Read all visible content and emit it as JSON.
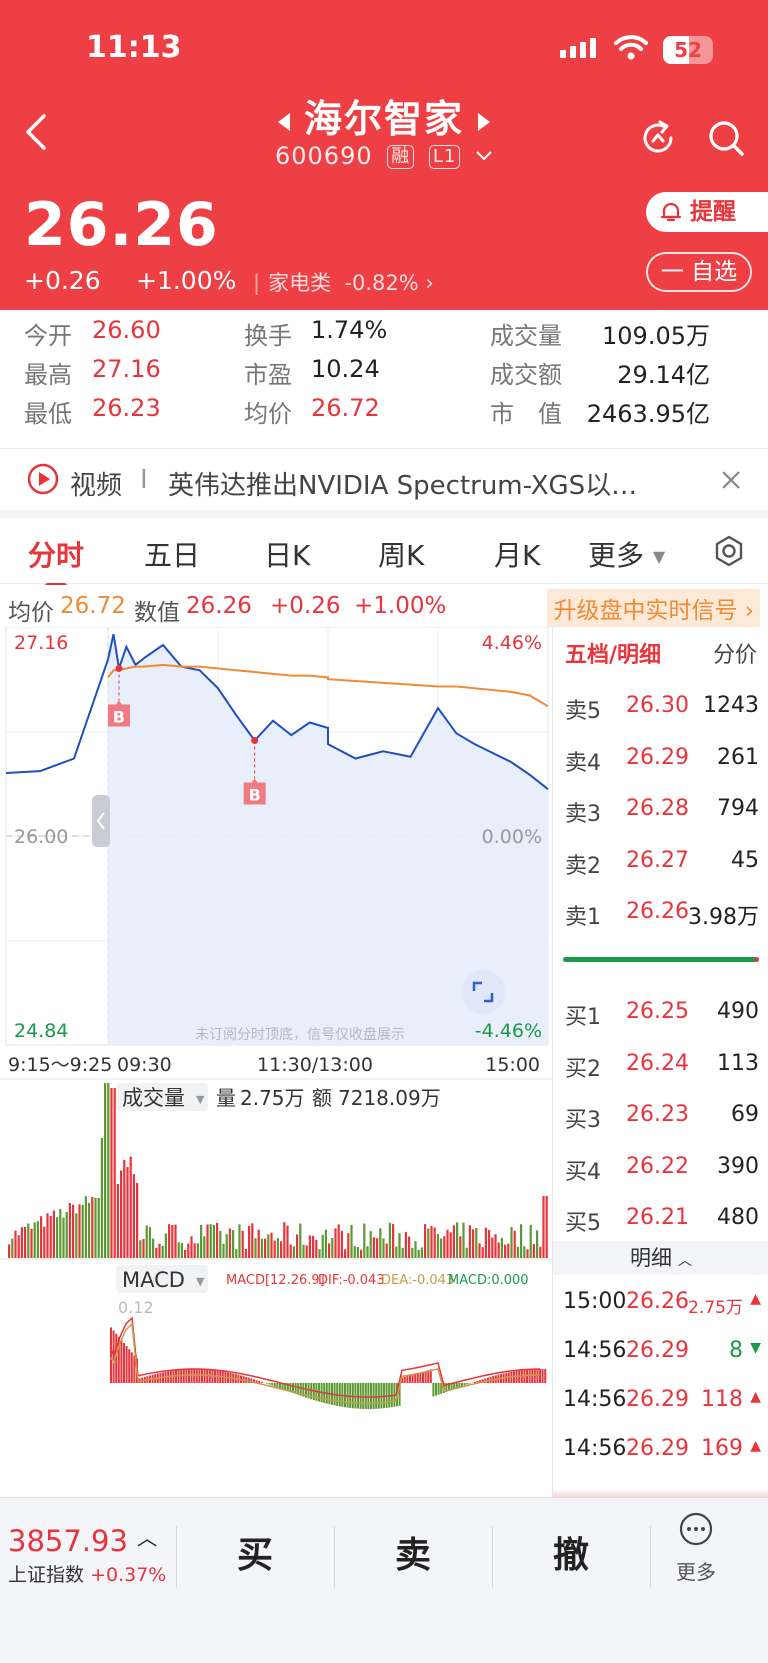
{
  "status_bar": {
    "time": "11:13",
    "battery": "52",
    "battery_level": 0.52
  },
  "header": {
    "stock_name": "海尔智家",
    "stock_code": "600690",
    "tag_margin": "融",
    "tag_level": "L1",
    "price": "26.26",
    "change": "+0.26",
    "change_pct": "+1.00%",
    "sector": "家电类",
    "sector_change": "-0.82%",
    "remind_label": "提醒",
    "watchlist_label": "一 自选"
  },
  "stats": [
    {
      "label": "今开",
      "value": "26.60",
      "color": "red"
    },
    {
      "label": "最高",
      "value": "27.16",
      "color": "red"
    },
    {
      "label": "最低",
      "value": "26.23",
      "color": "red"
    },
    {
      "label": "换手",
      "value": "1.74%",
      "color": "dark"
    },
    {
      "label": "市盈",
      "value": "10.24",
      "color": "dark"
    },
    {
      "label": "均价",
      "value": "26.72",
      "color": "red"
    },
    {
      "label": "成交量",
      "value": "109.05万",
      "color": "dark"
    },
    {
      "label": "成交额",
      "value": "29.14亿",
      "color": "dark"
    },
    {
      "label": "市　值",
      "value": "2463.95亿",
      "color": "dark"
    }
  ],
  "news": {
    "label": "视频",
    "text": "英伟达推出NVIDIA  Spectrum-XGS以…"
  },
  "tabs": [
    "分时",
    "五日",
    "日K",
    "周K",
    "月K",
    "更多"
  ],
  "info_line": {
    "avg_label": "均价",
    "avg": "26.72",
    "val_label": "数值",
    "val": "26.26",
    "chg": "+0.26",
    "pct": "+1.00%",
    "upgrade": "升级盘中实时信号"
  },
  "chart_labels": {
    "top_price": "27.16",
    "top_pct": "4.46%",
    "mid_price": "26.00",
    "mid_pct": "0.00%",
    "bot_price": "24.84",
    "bot_pct": "-4.46%",
    "note": "未订阅分时顶底，信号仅收盘展示",
    "signal_mark": "B"
  },
  "time_axis": [
    "9:15～9:25",
    "09:30",
    "11:30/13:00",
    "15:00"
  ],
  "volume_panel": {
    "label": "成交量",
    "vol_label": "量",
    "vol": "2.75万",
    "amt_label": "额",
    "amt": "7218.09万"
  },
  "macd_panel": {
    "label": "MACD",
    "params": "MACD[12.26.9]",
    "dif": "DIF:-0.043",
    "dea": "DEA:-0.043",
    "macd": "MACD:0.000",
    "axis": "0.12"
  },
  "chart_data": {
    "type": "line",
    "ylim": [
      24.84,
      27.16
    ],
    "prev_close": 26.0,
    "time": [
      "09:15",
      "09:20",
      "09:25",
      "09:30",
      "09:33",
      "09:36",
      "09:40",
      "09:45",
      "09:50",
      "10:00",
      "10:10",
      "10:20",
      "10:30",
      "10:40",
      "10:50",
      "11:00",
      "11:10",
      "11:20",
      "11:30",
      "13:00",
      "13:15",
      "13:30",
      "13:45",
      "14:00",
      "14:10",
      "14:20",
      "14:30",
      "14:40",
      "14:50",
      "15:00"
    ],
    "series": [
      {
        "values": [
          26.35,
          26.36,
          26.43,
          26.98,
          27.12,
          26.93,
          27.05,
          26.95,
          26.99,
          27.06,
          26.94,
          26.92,
          26.82,
          26.67,
          26.53,
          26.64,
          26.56,
          26.63,
          26.6,
          26.51,
          26.43,
          26.47,
          26.44,
          26.71,
          26.57,
          26.51,
          26.46,
          26.41,
          26.34,
          26.26
        ]
      },
      {
        "values": [
          null,
          null,
          null,
          26.88,
          26.92,
          26.92,
          26.93,
          26.94,
          26.94,
          26.95,
          26.94,
          26.94,
          26.93,
          26.92,
          26.91,
          26.9,
          26.89,
          26.89,
          26.88,
          26.87,
          26.86,
          26.85,
          26.84,
          26.83,
          26.83,
          26.82,
          26.81,
          26.8,
          26.78,
          26.72
        ]
      }
    ],
    "signals": [
      {
        "time": "09:36",
        "label": "B"
      },
      {
        "time": "10:50",
        "label": "B"
      }
    ]
  },
  "order_book": {
    "header": "五档/明细",
    "header2": "分价",
    "asks": [
      {
        "level": "卖5",
        "price": "26.30",
        "vol": "1243"
      },
      {
        "level": "卖4",
        "price": "26.29",
        "vol": "261"
      },
      {
        "level": "卖3",
        "price": "26.28",
        "vol": "794"
      },
      {
        "level": "卖2",
        "price": "26.27",
        "vol": "45"
      },
      {
        "level": "卖1",
        "price": "26.26",
        "vol": "3.98万"
      }
    ],
    "bids": [
      {
        "level": "买1",
        "price": "26.25",
        "vol": "490"
      },
      {
        "level": "买2",
        "price": "26.24",
        "vol": "113"
      },
      {
        "level": "买3",
        "price": "26.23",
        "vol": "69"
      },
      {
        "level": "买4",
        "price": "26.22",
        "vol": "390"
      },
      {
        "level": "买5",
        "price": "26.21",
        "vol": "480"
      }
    ],
    "detail_label": "明细",
    "trades": [
      {
        "time": "15:00",
        "price": "26.26",
        "vol": "2.75万",
        "dir": "up"
      },
      {
        "time": "14:56",
        "price": "26.29",
        "vol": "8",
        "dir": "down"
      },
      {
        "time": "14:56",
        "price": "26.29",
        "vol": "118",
        "dir": "up"
      },
      {
        "time": "14:56",
        "price": "26.29",
        "vol": "169",
        "dir": "up"
      }
    ]
  },
  "footer": {
    "index_value": "3857.93",
    "index_name": "上证指数",
    "index_change": "+0.37%",
    "buy": "买",
    "sell": "卖",
    "cancel": "撤",
    "more": "更多"
  },
  "colors": {
    "brand_red": "#ee4044",
    "up": "#e8343b",
    "down": "#1a9a4a",
    "price_line": "#1f4fbf",
    "avg_line": "#f08a34"
  }
}
